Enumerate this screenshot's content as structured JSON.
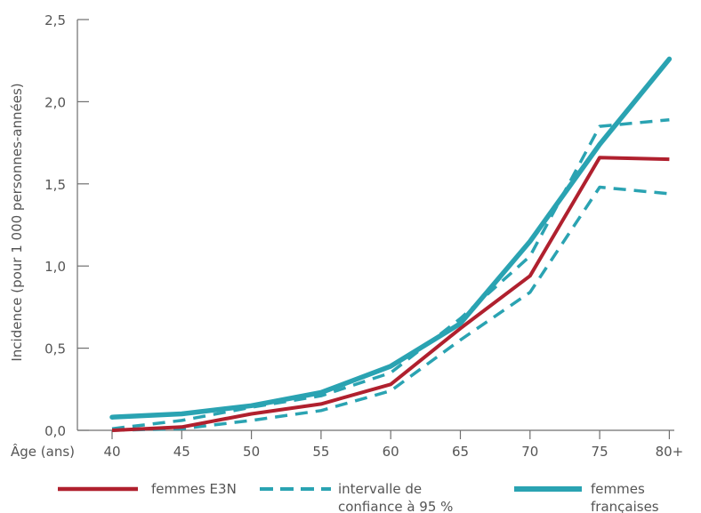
{
  "chart_data": {
    "type": "line",
    "title": "",
    "xlabel": "Âge (ans)",
    "ylabel": "Incidence (pour 1 000 personnes-années)",
    "categories": [
      "40",
      "45",
      "50",
      "55",
      "60",
      "65",
      "70",
      "75",
      "80+"
    ],
    "ylim": [
      0,
      2.5
    ],
    "yticks": [
      "0,0",
      "0,5",
      "1,0",
      "1,5",
      "2,0",
      "2,5"
    ],
    "grid": false,
    "legend_position": "bottom",
    "colors": {
      "e3n": "#b0202e",
      "ci": "#2aa3b2",
      "france": "#2aa3b2"
    },
    "series": [
      {
        "key": "e3n",
        "name": "femmes E3N",
        "style": "solid",
        "values": [
          0.0,
          0.02,
          0.1,
          0.16,
          0.28,
          0.62,
          0.94,
          1.66,
          1.65
        ]
      },
      {
        "key": "ci_upper",
        "name": "intervalle de confiance à 95 %",
        "style": "dashed",
        "values": [
          0.01,
          0.06,
          0.14,
          0.21,
          0.35,
          0.68,
          1.06,
          1.85,
          1.89
        ]
      },
      {
        "key": "ci_lower",
        "name": "",
        "style": "dashed",
        "values": [
          0.0,
          0.01,
          0.06,
          0.12,
          0.24,
          0.55,
          0.84,
          1.48,
          1.44
        ]
      },
      {
        "key": "france",
        "name": "femmes françaises",
        "style": "thick",
        "values": [
          0.08,
          0.1,
          0.15,
          0.23,
          0.39,
          0.65,
          1.15,
          1.74,
          2.26
        ]
      }
    ],
    "legend": [
      {
        "series": "e3n",
        "lines": [
          "femmes E3N"
        ]
      },
      {
        "series": "ci_upper",
        "lines": [
          "intervalle de",
          "confiance à 95 %"
        ]
      },
      {
        "series": "france",
        "lines": [
          "femmes",
          "françaises"
        ]
      }
    ]
  }
}
